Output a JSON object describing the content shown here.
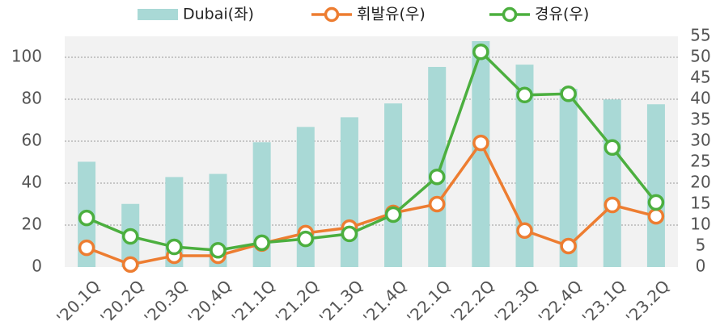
{
  "chart_data": {
    "type": "bar",
    "categories": [
      "'20.1Q",
      "'20.2Q",
      "'20.3Q",
      "'20.4Q",
      "'21.1Q",
      "'21.2Q",
      "'21.3Q",
      "'21.4Q",
      "'22.1Q",
      "'22.2Q",
      "'22.3Q",
      "'22.4Q",
      "'23.1Q",
      "'23.2Q"
    ],
    "series": [
      {
        "name": "Dubai(좌)",
        "type": "bar",
        "color": "#a9d9d6",
        "axis": "y",
        "values": [
          50.2,
          30.1,
          42.9,
          44.4,
          59.5,
          66.8,
          71.4,
          78,
          95.4,
          107.7,
          96.5,
          85,
          79.9,
          77.6
        ]
      },
      {
        "name": "휘발유(우)",
        "type": "line",
        "color": "#ed7d31",
        "axis": "y2",
        "values": [
          4.6,
          0.6,
          2.7,
          2.7,
          5.6,
          8.1,
          9.4,
          12.9,
          15,
          29.6,
          8.7,
          5,
          14.8,
          12.1
        ]
      },
      {
        "name": "경유(우)",
        "type": "line",
        "color": "#4caf3f",
        "axis": "y2",
        "values": [
          11.7,
          7.3,
          4.8,
          4,
          5.8,
          6.7,
          7.9,
          12.5,
          21.5,
          51.3,
          41,
          41.3,
          28.5,
          15.4
        ]
      }
    ],
    "ylim": [
      0,
      110
    ],
    "yticks": [
      0,
      20,
      40,
      60,
      80,
      100
    ],
    "y2lim": [
      0,
      55
    ],
    "y2ticks": [
      0,
      5,
      10,
      15,
      20,
      25,
      30,
      35,
      40,
      45,
      50,
      55
    ],
    "grid": true,
    "legend": "top"
  }
}
